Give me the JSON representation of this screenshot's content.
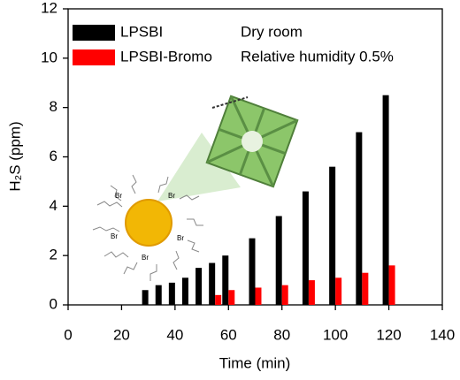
{
  "chart_data": {
    "type": "bar",
    "x_label": "Time (min)",
    "y_label": "H₂S (ppm)",
    "x": [
      30,
      35,
      40,
      45,
      50,
      55,
      60,
      70,
      80,
      90,
      100,
      110,
      120
    ],
    "series": [
      {
        "name": "LPSBI",
        "color": "#000000",
        "values": [
          0.6,
          0.8,
          0.9,
          1.1,
          1.5,
          1.7,
          2.0,
          2.7,
          3.6,
          4.6,
          5.6,
          7.0,
          8.5
        ]
      },
      {
        "name": "LPSBI-Bromo",
        "color": "#ff0000",
        "values": [
          null,
          null,
          null,
          null,
          null,
          0.4,
          0.6,
          0.7,
          0.8,
          1.0,
          1.1,
          1.3,
          1.6
        ]
      }
    ],
    "annotations": [
      "Dry room",
      "Relative humidity 0.5%"
    ],
    "illustration_label": "Br",
    "xlim": [
      0,
      140
    ],
    "xticks": [
      0,
      20,
      40,
      60,
      80,
      100,
      120,
      140
    ],
    "ylim": [
      0,
      12
    ],
    "yticks": [
      0,
      2,
      4,
      6,
      8,
      10,
      12
    ]
  }
}
